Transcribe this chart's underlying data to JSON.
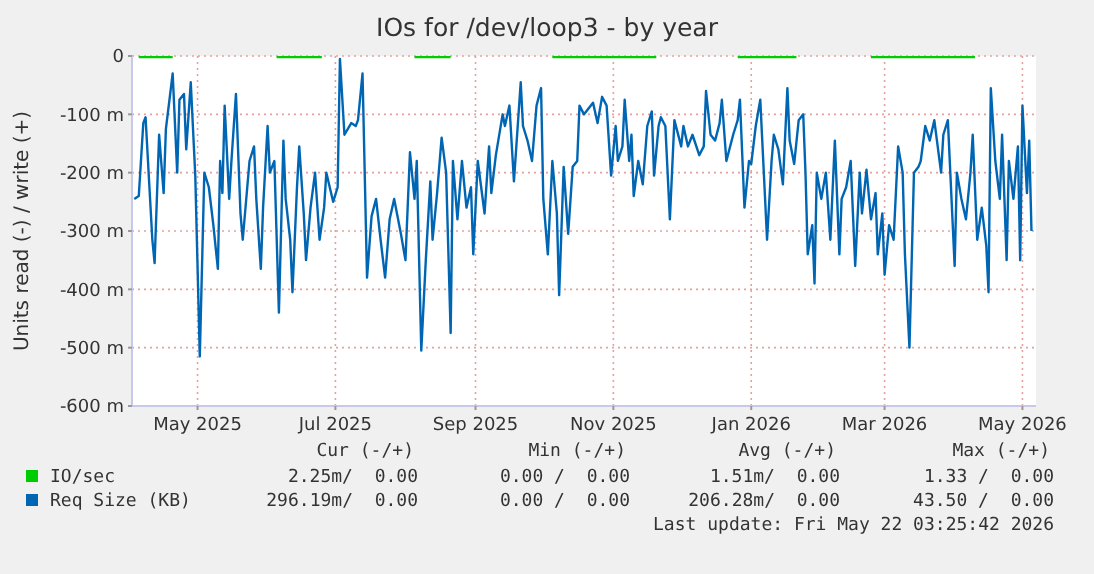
{
  "chart_data": {
    "type": "line",
    "title": "IOs for /dev/loop3 - by year",
    "ylabel": "Units read (-) / write (+)",
    "xlim": [
      "2025-04-17",
      "2026-05-22"
    ],
    "xticks": [
      {
        "value": "2025-05-16",
        "label": "May 2025"
      },
      {
        "value": "2025-07-16",
        "label": "Jul 2025"
      },
      {
        "value": "2025-09-16",
        "label": "Sep 2025"
      },
      {
        "value": "2025-11-16",
        "label": "Nov 2025"
      },
      {
        "value": "2026-01-16",
        "label": "Jan 2026"
      },
      {
        "value": "2026-03-16",
        "label": "Mar 2026"
      },
      {
        "value": "2026-05-16",
        "label": "May 2026"
      }
    ],
    "ylim": [
      -600,
      0
    ],
    "yticks": [
      0,
      {
        "value": -100,
        "label": "-100 m"
      },
      {
        "value": -200,
        "label": "-200 m"
      },
      {
        "value": -300,
        "label": "-300 m"
      },
      {
        "value": -400,
        "label": "-400 m"
      },
      {
        "value": -500,
        "label": "-500 m"
      },
      {
        "value": -600,
        "label": "-600 m"
      }
    ],
    "grid": true,
    "legend": "bottom",
    "marker": "none",
    "line_style": "solid",
    "series": [
      {
        "name": "IO/sec",
        "color": "#00cc00",
        "x": [
          "2025-04-20",
          "2025-05-05",
          "2025-05-20",
          "2025-06-20",
          "2025-07-10",
          "2025-07-25",
          "2025-08-20",
          "2025-09-05",
          "2025-09-20",
          "2025-10-20",
          "2025-11-05",
          "2025-11-20",
          "2025-12-05",
          "2025-12-20",
          "2026-01-10",
          "2026-02-05",
          "2026-02-20",
          "2026-03-10",
          "2026-04-10",
          "2026-04-25"
        ],
        "values": [
          -2,
          -2,
          null,
          -2,
          -2,
          null,
          -2,
          -2,
          null,
          -2,
          -2,
          -2,
          -2,
          null,
          -2,
          -2,
          null,
          -2,
          -2,
          -2
        ]
      },
      {
        "name": "Req Size (KB)",
        "color": "#0066b3",
        "x": [
          "2025-04-18",
          "2025-04-20",
          "2025-04-22",
          "2025-04-23",
          "2025-04-26",
          "2025-04-27",
          "2025-04-29",
          "2025-05-01",
          "2025-05-02",
          "2025-05-05",
          "2025-05-07",
          "2025-05-08",
          "2025-05-10",
          "2025-05-11",
          "2025-05-13",
          "2025-05-15",
          "2025-05-17",
          "2025-05-19",
          "2025-05-21",
          "2025-05-23",
          "2025-05-25",
          "2025-05-26",
          "2025-05-27",
          "2025-05-28",
          "2025-05-30",
          "2025-05-31",
          "2025-06-02",
          "2025-06-04",
          "2025-06-05",
          "2025-06-07",
          "2025-06-08",
          "2025-06-10",
          "2025-06-11",
          "2025-06-13",
          "2025-06-14",
          "2025-06-16",
          "2025-06-17",
          "2025-06-19",
          "2025-06-21",
          "2025-06-23",
          "2025-06-24",
          "2025-06-26",
          "2025-06-27",
          "2025-06-29",
          "2025-06-30",
          "2025-07-02",
          "2025-07-03",
          "2025-07-05",
          "2025-07-07",
          "2025-07-09",
          "2025-07-11",
          "2025-07-12",
          "2025-07-15",
          "2025-07-17",
          "2025-07-18",
          "2025-07-20",
          "2025-07-23",
          "2025-07-25",
          "2025-07-26",
          "2025-07-28",
          "2025-07-30",
          "2025-08-01",
          "2025-08-03",
          "2025-08-05",
          "2025-08-07",
          "2025-08-09",
          "2025-08-11",
          "2025-08-14",
          "2025-08-16",
          "2025-08-18",
          "2025-08-20",
          "2025-08-21",
          "2025-08-23",
          "2025-08-25",
          "2025-08-27",
          "2025-08-28",
          "2025-08-30",
          "2025-09-01",
          "2025-09-03",
          "2025-09-05",
          "2025-09-06",
          "2025-09-08",
          "2025-09-10",
          "2025-09-12",
          "2025-09-14",
          "2025-09-15",
          "2025-09-17",
          "2025-09-20",
          "2025-09-22",
          "2025-09-23",
          "2025-09-25",
          "2025-09-28",
          "2025-09-29",
          "2025-10-01",
          "2025-10-03",
          "2025-10-06",
          "2025-10-07",
          "2025-10-09",
          "2025-10-11",
          "2025-10-13",
          "2025-10-15",
          "2025-10-16",
          "2025-10-18",
          "2025-10-20",
          "2025-10-22",
          "2025-10-23",
          "2025-10-25",
          "2025-10-27",
          "2025-10-29",
          "2025-10-31",
          "2025-11-01",
          "2025-11-03",
          "2025-11-07",
          "2025-11-09",
          "2025-11-11",
          "2025-11-13",
          "2025-11-15",
          "2025-11-17",
          "2025-11-18",
          "2025-11-20",
          "2025-11-21",
          "2025-11-23",
          "2025-11-24",
          "2025-11-25",
          "2025-11-27",
          "2025-11-29",
          "2025-12-01",
          "2025-12-03",
          "2025-12-04",
          "2025-12-06",
          "2025-12-07",
          "2025-12-09",
          "2025-12-11",
          "2025-12-13",
          "2025-12-16",
          "2025-12-17",
          "2025-12-19",
          "2025-12-21",
          "2025-12-24",
          "2025-12-26",
          "2025-12-27",
          "2025-12-29",
          "2025-12-31",
          "2026-01-02",
          "2026-01-03",
          "2026-01-05",
          "2026-01-08",
          "2026-01-10",
          "2026-01-11",
          "2026-01-13",
          "2026-01-15",
          "2026-01-16",
          "2026-01-18",
          "2026-01-20",
          "2026-01-21",
          "2026-01-23",
          "2026-01-25",
          "2026-01-26",
          "2026-01-28",
          "2026-01-30",
          "2026-02-01",
          "2026-02-02",
          "2026-02-04",
          "2026-02-06",
          "2026-02-08",
          "2026-02-09",
          "2026-02-10",
          "2026-02-12",
          "2026-02-13",
          "2026-02-14",
          "2026-02-16",
          "2026-02-18",
          "2026-02-20",
          "2026-02-22",
          "2026-02-24",
          "2026-02-25",
          "2026-02-27",
          "2026-03-01",
          "2026-03-03",
          "2026-03-05",
          "2026-03-06",
          "2026-03-08",
          "2026-03-10",
          "2026-03-12",
          "2026-03-13",
          "2026-03-15",
          "2026-03-16",
          "2026-03-18",
          "2026-03-20",
          "2026-03-22",
          "2026-03-24",
          "2026-03-25",
          "2026-03-27",
          "2026-03-29",
          "2026-03-31",
          "2026-04-01",
          "2026-04-03",
          "2026-04-05",
          "2026-04-07",
          "2026-04-10",
          "2026-04-11",
          "2026-04-13",
          "2026-04-16",
          "2026-04-17",
          "2026-04-19",
          "2026-04-21",
          "2026-04-23",
          "2026-04-24",
          "2026-04-26",
          "2026-04-28",
          "2026-04-30",
          "2026-05-01",
          "2026-05-02",
          "2026-05-04",
          "2026-05-06",
          "2026-05-07",
          "2026-05-09",
          "2026-05-10",
          "2026-05-12",
          "2026-05-14",
          "2026-05-15",
          "2026-05-16",
          "2026-05-18",
          "2026-05-19",
          "2026-05-20"
        ],
        "values": [
          -245,
          -240,
          -115,
          -105,
          -315,
          -355,
          -135,
          -235,
          -125,
          -30,
          -200,
          -75,
          -65,
          -160,
          -45,
          -205,
          -515,
          -200,
          -225,
          -290,
          -365,
          -180,
          -235,
          -85,
          -245,
          -180,
          -65,
          -270,
          -315,
          -225,
          -180,
          -155,
          -245,
          -365,
          -260,
          -120,
          -200,
          -180,
          -440,
          -145,
          -245,
          -315,
          -405,
          -225,
          -155,
          -270,
          -350,
          -260,
          -200,
          -315,
          -260,
          -200,
          -250,
          -225,
          -5,
          -135,
          -115,
          -120,
          -110,
          -30,
          -380,
          -275,
          -245,
          -315,
          -380,
          -280,
          -245,
          -305,
          -350,
          -165,
          -245,
          -180,
          -505,
          -350,
          -215,
          -315,
          -235,
          -140,
          -200,
          -475,
          -180,
          -280,
          -180,
          -260,
          -225,
          -340,
          -180,
          -270,
          -155,
          -235,
          -170,
          -100,
          -120,
          -85,
          -215,
          -45,
          -120,
          -145,
          -180,
          -85,
          -55,
          -245,
          -340,
          -180,
          -270,
          -410,
          -190,
          -305,
          -190,
          -180,
          -85,
          -100,
          -80,
          -115,
          -70,
          -85,
          -205,
          -120,
          -180,
          -155,
          -75,
          -180,
          -135,
          -240,
          -180,
          -220,
          -120,
          -95,
          -205,
          -120,
          -105,
          -120,
          -280,
          -110,
          -155,
          -120,
          -155,
          -135,
          -170,
          -155,
          -60,
          -135,
          -145,
          -115,
          -75,
          -180,
          -135,
          -110,
          -75,
          -260,
          -180,
          -185,
          -120,
          -75,
          -155,
          -315,
          -180,
          -135,
          -160,
          -220,
          -55,
          -145,
          -185,
          -110,
          -100,
          -200,
          -340,
          -290,
          -390,
          -200,
          -245,
          -200,
          -315,
          -145,
          -340,
          -245,
          -225,
          -180,
          -360,
          -200,
          -270,
          -195,
          -280,
          -235,
          -340,
          -270,
          -375,
          -290,
          -315,
          -155,
          -200,
          -340,
          -500,
          -200,
          -190,
          -180,
          -120,
          -145,
          -110,
          -200,
          -135,
          -110,
          -360,
          -200,
          -245,
          -280,
          -200,
          -135,
          -315,
          -260,
          -325,
          -405,
          -55,
          -180,
          -245,
          -135,
          -350,
          -180,
          -245,
          -155,
          -350,
          -85,
          -235,
          -145,
          -300
        ]
      }
    ],
    "annotations": [
      "Cur (-/+)",
      "Min (-/+)",
      "Avg (-/+)",
      "Max (-/+)",
      "2.25m/  0.00",
      "0.00 /  0.00",
      "1.51m/  0.00",
      "1.33 /  0.00",
      "296.19m/  0.00",
      "0.00 /  0.00",
      "206.28m/  0.00",
      "43.50 /  0.00",
      "Last update: Fri May 22 03:25:42 2026"
    ]
  }
}
